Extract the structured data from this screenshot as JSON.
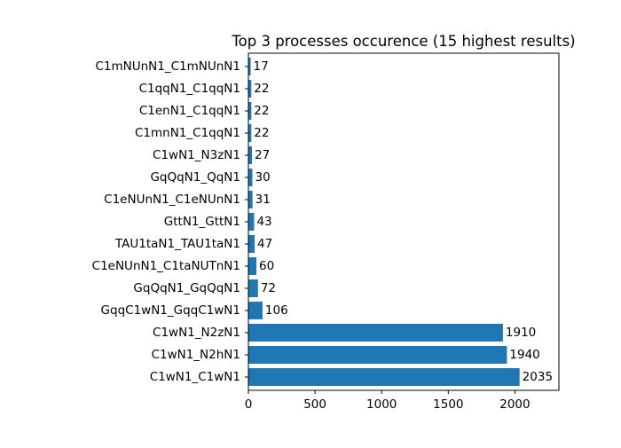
{
  "chart_data": {
    "type": "bar",
    "orientation": "horizontal",
    "title": "Top 3 processes occurence (15 highest results)",
    "xlabel": "",
    "ylabel": "",
    "categories": [
      "C1wN1_C1wN1",
      "C1wN1_N2hN1",
      "C1wN1_N2zN1",
      "GqqC1wN1_GqqC1wN1",
      "GqQqN1_GqQqN1",
      "C1eNUnN1_C1taNUTnN1",
      "TAU1taN1_TAU1taN1",
      "GttN1_GttN1",
      "C1eNUnN1_C1eNUnN1",
      "GqQqN1_QqN1",
      "C1wN1_N3zN1",
      "C1mnN1_C1qqN1",
      "C1enN1_C1qqN1",
      "C1qqN1_C1qqN1",
      "C1mNUnN1_C1mNUnN1"
    ],
    "values": [
      2035,
      1940,
      1910,
      106,
      72,
      60,
      47,
      43,
      31,
      30,
      27,
      22,
      22,
      22,
      17
    ],
    "xlim": [
      0,
      2330
    ],
    "xticks": [
      0,
      500,
      1000,
      1500,
      2000
    ],
    "xtick_labels": [
      "0",
      "500",
      "1000",
      "1500",
      "2000"
    ],
    "grid": false,
    "bar_color": "#1f77b4",
    "data_labels": true
  }
}
